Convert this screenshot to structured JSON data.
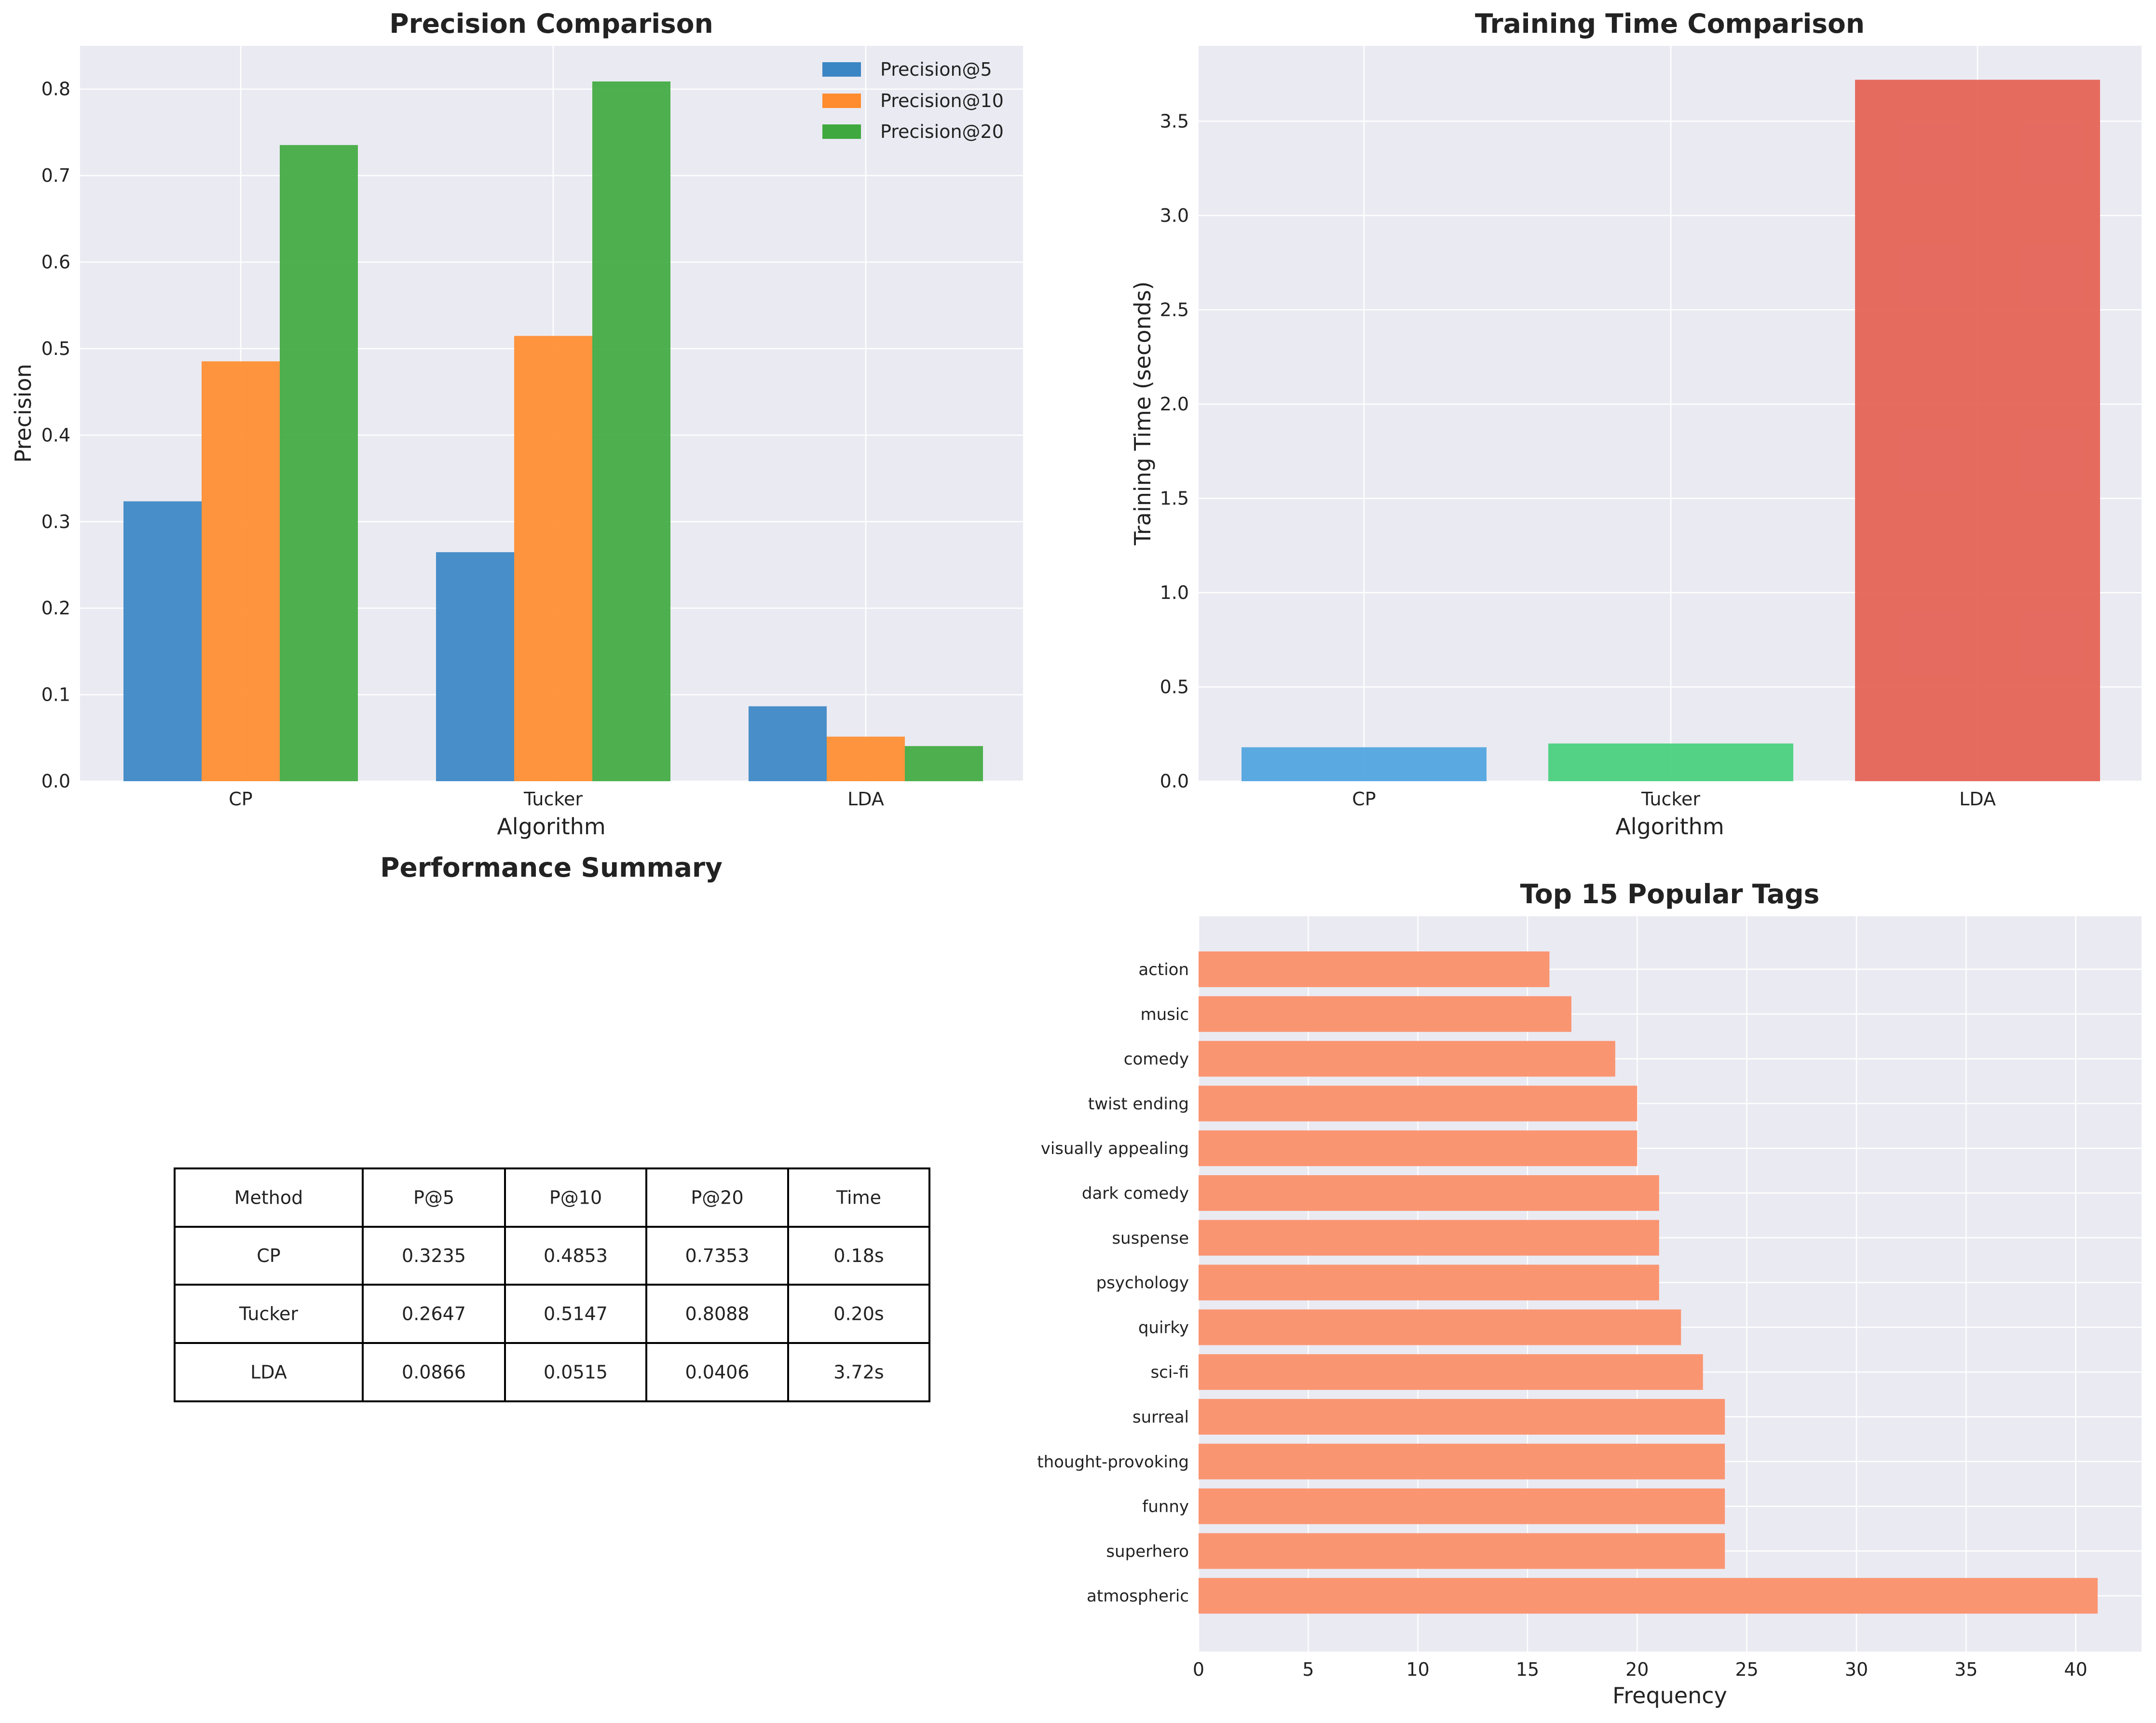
{
  "chart_data": [
    {
      "type": "bar",
      "title": "Precision Comparison",
      "xlabel": "Algorithm",
      "ylabel": "Precision",
      "categories": [
        "CP",
        "Tucker",
        "LDA"
      ],
      "ylim": [
        0,
        0.85
      ],
      "yticks": [
        "0.0",
        "0.1",
        "0.2",
        "0.3",
        "0.4",
        "0.5",
        "0.6",
        "0.7",
        "0.8"
      ],
      "series": [
        {
          "name": "Precision@5",
          "values": [
            0.3235,
            0.2647,
            0.0866
          ],
          "color": "#3a86c4"
        },
        {
          "name": "Precision@10",
          "values": [
            0.4853,
            0.5147,
            0.0515
          ],
          "color": "#ff8c2e"
        },
        {
          "name": "Precision@20",
          "values": [
            0.7353,
            0.8088,
            0.0406
          ],
          "color": "#3fa93f"
        }
      ],
      "legend": "top-right",
      "grid": true
    },
    {
      "type": "bar",
      "title": "Training Time Comparison",
      "xlabel": "Algorithm",
      "ylabel": "Training Time (seconds)",
      "categories": [
        "CP",
        "Tucker",
        "LDA"
      ],
      "values": [
        0.18,
        0.2,
        3.72
      ],
      "colors": [
        "#4ea3e0",
        "#45cf7d",
        "#e55f53"
      ],
      "ylim": [
        0,
        3.9
      ],
      "yticks": [
        "0.0",
        "0.5",
        "1.0",
        "1.5",
        "2.0",
        "2.5",
        "3.0",
        "3.5"
      ],
      "grid": true
    },
    {
      "type": "table",
      "title": "Performance Summary",
      "columns": [
        "Method",
        "P@5",
        "P@10",
        "P@20",
        "Time"
      ],
      "rows": [
        [
          "CP",
          "0.3235",
          "0.4853",
          "0.7353",
          "0.18s"
        ],
        [
          "Tucker",
          "0.2647",
          "0.5147",
          "0.8088",
          "0.20s"
        ],
        [
          "LDA",
          "0.0866",
          "0.0515",
          "0.0406",
          "3.72s"
        ]
      ]
    },
    {
      "type": "bar",
      "orientation": "horizontal",
      "title": "Top 15 Popular Tags",
      "xlabel": "Frequency",
      "categories": [
        "action",
        "music",
        "comedy",
        "twist ending",
        "visually appealing",
        "dark comedy",
        "suspense",
        "psychology",
        "quirky",
        "sci-fi",
        "surreal",
        "thought-provoking",
        "funny",
        "superhero",
        "atmospheric"
      ],
      "values": [
        16,
        17,
        19,
        20,
        20,
        21,
        21,
        21,
        22,
        23,
        24,
        24,
        24,
        24,
        41
      ],
      "color": "#fa9572",
      "xlim": [
        0,
        43
      ],
      "xticks": [
        "0",
        "5",
        "10",
        "15",
        "20",
        "25",
        "30",
        "35",
        "40"
      ],
      "grid": true
    }
  ]
}
